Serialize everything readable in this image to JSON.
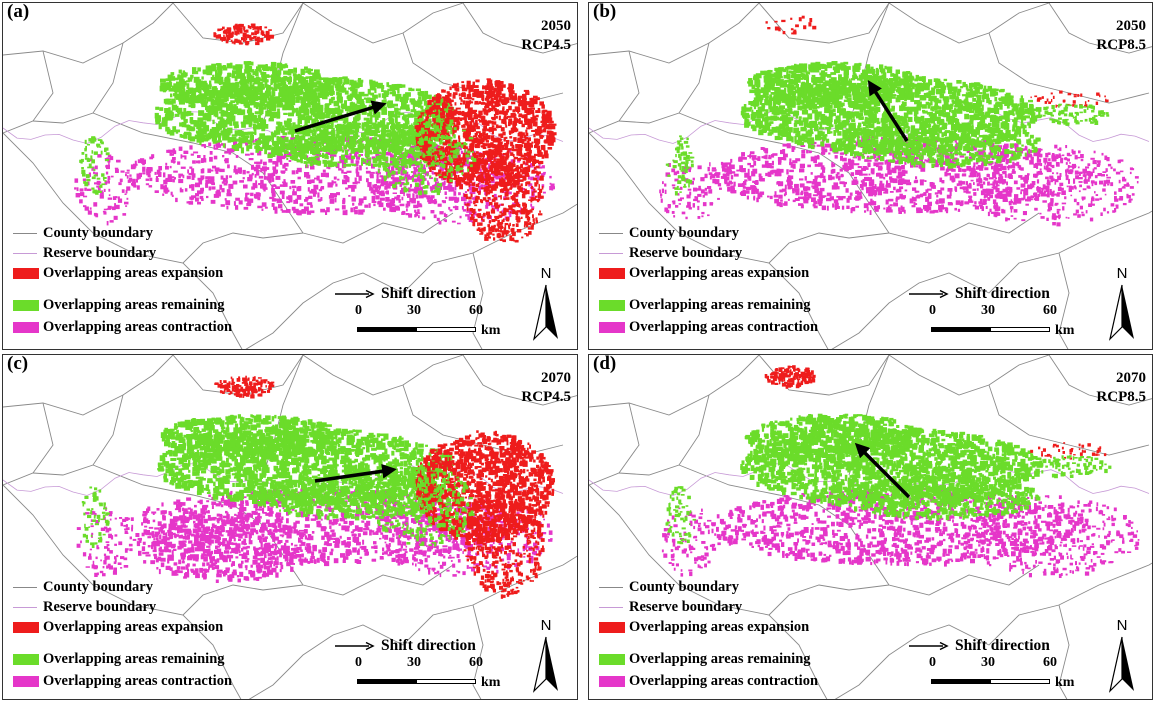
{
  "colors": {
    "expansion": "#ee1c1c",
    "remaining": "#6bdc2a",
    "contraction": "#e536c9",
    "county_boundary": "#8a8a8a",
    "reserve_boundary": "#c79ad6"
  },
  "legend": {
    "county": "County boundary",
    "reserve": "Reserve boundary",
    "expansion": "Overlapping areas expansion",
    "remaining": "Overlapping areas remaining",
    "contraction": "Overlapping areas contraction"
  },
  "shift_label": "Shift direction",
  "scale": {
    "t0": "0",
    "t30": "30",
    "t60": "60",
    "unit": "km"
  },
  "north_label": "N",
  "panels": [
    {
      "label": "(a)",
      "year": "2050",
      "scenario": "RCP4.5",
      "arrow_direction": "east-northeast"
    },
    {
      "label": "(b)",
      "year": "2050",
      "scenario": "RCP8.5",
      "arrow_direction": "north-northwest"
    },
    {
      "label": "(c)",
      "year": "2070",
      "scenario": "RCP4.5",
      "arrow_direction": "east-northeast"
    },
    {
      "label": "(d)",
      "year": "2070",
      "scenario": "RCP8.5",
      "arrow_direction": "northwest"
    }
  ]
}
